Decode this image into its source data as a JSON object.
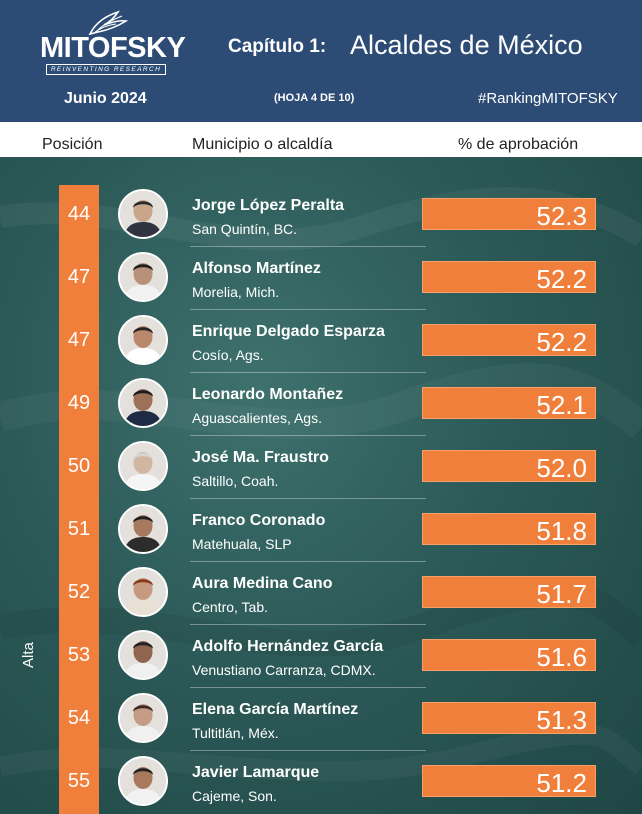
{
  "header": {
    "logo_text": "MITOFSKY",
    "logo_tagline": "REINVENTING RESEARCH",
    "chapter": "Capítulo 1:",
    "title": "Alcaldes de México",
    "date": "Junio 2024",
    "sheet": "(HOJA 4 DE 10)",
    "hashtag": "#RankingMITOFSKY"
  },
  "columns": {
    "position": "Posición",
    "municipality": "Municipio o alcaldía",
    "approval": "% de aprobación"
  },
  "side_label": "Alta",
  "colors": {
    "header_bg": "#2c4c75",
    "accent": "#f07f3c",
    "panel_bg": "#2c5a58"
  },
  "chart_data": {
    "type": "bar",
    "orientation": "horizontal",
    "categories": [
      "Jorge López Peralta",
      "Alfonso Martínez",
      "Enrique Delgado Esparza",
      "Leonardo Montañez",
      "José Ma. Fraustro",
      "Franco Coronado",
      "Aura Medina Cano",
      "Adolfo Hernández García",
      "Elena García Martínez",
      "Javier Lamarque"
    ],
    "values": [
      52.3,
      52.2,
      52.2,
      52.1,
      52.0,
      51.8,
      51.7,
      51.6,
      51.3,
      51.2
    ],
    "value_labels": [
      "52.3",
      "52.2",
      "52.2",
      "52.1",
      "52.0",
      "51.8",
      "51.7",
      "51.6",
      "51.3",
      "51.2"
    ],
    "ranks": [
      "44",
      "47",
      "47",
      "49",
      "50",
      "51",
      "52",
      "53",
      "54",
      "55"
    ],
    "places": [
      "San Quintín, BC.",
      "Morelia, Mich.",
      "Cosío, Ags.",
      "Aguascalientes, Ags.",
      "Saltillo, Coah.",
      "Matehuala, SLP",
      "Centro, Tab.",
      "Venustiano Carranza, CDMX.",
      "Tultitlán, Méx.",
      "Cajeme, Son."
    ],
    "title": "Alcaldes de México",
    "xlabel": "",
    "ylabel": "% de aprobación",
    "grid": false,
    "legend": "none"
  }
}
